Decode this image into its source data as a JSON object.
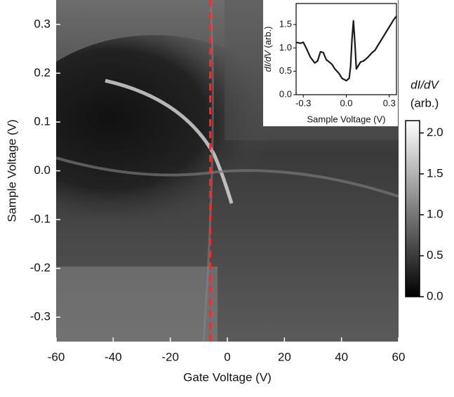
{
  "chart_data": [
    {
      "type": "heatmap",
      "xlabel": "Gate Voltage (V)",
      "ylabel": "Sample Voltage (V)",
      "xlim": [
        -60,
        60
      ],
      "ylim": [
        -0.35,
        0.35
      ],
      "xticks": [
        -60,
        -40,
        -20,
        0,
        20,
        40,
        60
      ],
      "yticks": [
        0.3,
        0.2,
        0.1,
        {
          "value": 0,
          "label": "0.0"
        },
        -0.1,
        -0.2,
        -0.3
      ],
      "vline": {
        "x": -6,
        "color": "#e8312f"
      },
      "colorbar": {
        "title": "dI/dV",
        "unit": "(arb.)",
        "lim": [
          0,
          2.15
        ],
        "ticks": [
          {
            "value": 0,
            "label": "0.0"
          },
          0.5,
          {
            "value": 1,
            "label": "1.0"
          },
          1.5,
          {
            "value": 2,
            "label": "2.0"
          }
        ]
      }
    },
    {
      "type": "line",
      "xlabel": "Sample Voltage (V)",
      "ylabel": "dI/dV",
      "ylabel_unit": "(arb.)",
      "xlim": [
        -0.35,
        0.35
      ],
      "ylim": [
        0,
        1.95
      ],
      "xticks": [
        -0.3,
        {
          "value": 0,
          "label": "0.0"
        },
        0.3
      ],
      "yticks": [
        {
          "value": 0,
          "label": "0.0"
        },
        0.5,
        {
          "value": 1,
          "label": "1.0"
        },
        1.5
      ],
      "series": [
        {
          "color": "#1a1a1a",
          "x": [
            -0.35,
            -0.32,
            -0.3,
            -0.28,
            -0.25,
            -0.22,
            -0.2,
            -0.18,
            -0.16,
            -0.14,
            -0.12,
            -0.1,
            -0.08,
            -0.05,
            -0.03,
            0.0,
            0.02,
            0.03,
            0.04,
            0.05,
            0.06,
            0.07,
            0.08,
            0.1,
            0.12,
            0.15,
            0.18,
            0.2,
            0.22,
            0.25,
            0.28,
            0.3,
            0.33,
            0.35
          ],
          "values": [
            1.12,
            1.1,
            1.12,
            1.0,
            0.8,
            0.68,
            0.72,
            0.92,
            0.9,
            0.75,
            0.7,
            0.65,
            0.55,
            0.45,
            0.35,
            0.3,
            0.35,
            0.6,
            1.2,
            1.58,
            1.1,
            0.55,
            0.6,
            0.7,
            0.72,
            0.8,
            0.9,
            0.95,
            1.05,
            1.2,
            1.35,
            1.45,
            1.6,
            1.68
          ]
        }
      ]
    }
  ]
}
